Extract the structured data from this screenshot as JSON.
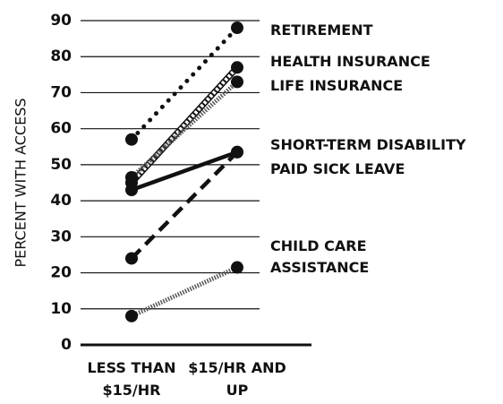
{
  "chart_data": {
    "type": "slope",
    "y_label": "PERCENT WITH ACCESS",
    "categories": [
      "LESS THAN $15/HR",
      "$15/HR AND UP"
    ],
    "series": [
      {
        "name": "RETIREMENT",
        "color": "#111111",
        "style": "dotted",
        "values": [
          57,
          88
        ]
      },
      {
        "name": "HEALTH INSURANCE",
        "color": "#111111",
        "style": "checkered",
        "values": [
          45,
          77
        ]
      },
      {
        "name": "LIFE INSURANCE",
        "color": "#555555",
        "style": "hatched",
        "values": [
          46.5,
          73
        ]
      },
      {
        "name": "SHORT-TERM DISABILITY",
        "color": "#111111",
        "style": "solid",
        "values": [
          43,
          53.5
        ]
      },
      {
        "name": "PAID SICK LEAVE",
        "color": "#111111",
        "style": "dashed",
        "values": [
          24,
          53.5
        ]
      },
      {
        "name": "CHILD CARE ASSISTANCE",
        "color": "#555555",
        "style": "hatched",
        "values": [
          8,
          21.5
        ]
      }
    ],
    "ylim": [
      0,
      90
    ],
    "yticks": [
      0,
      10,
      20,
      30,
      40,
      50,
      60,
      70,
      80,
      90
    ],
    "grid": true
  }
}
